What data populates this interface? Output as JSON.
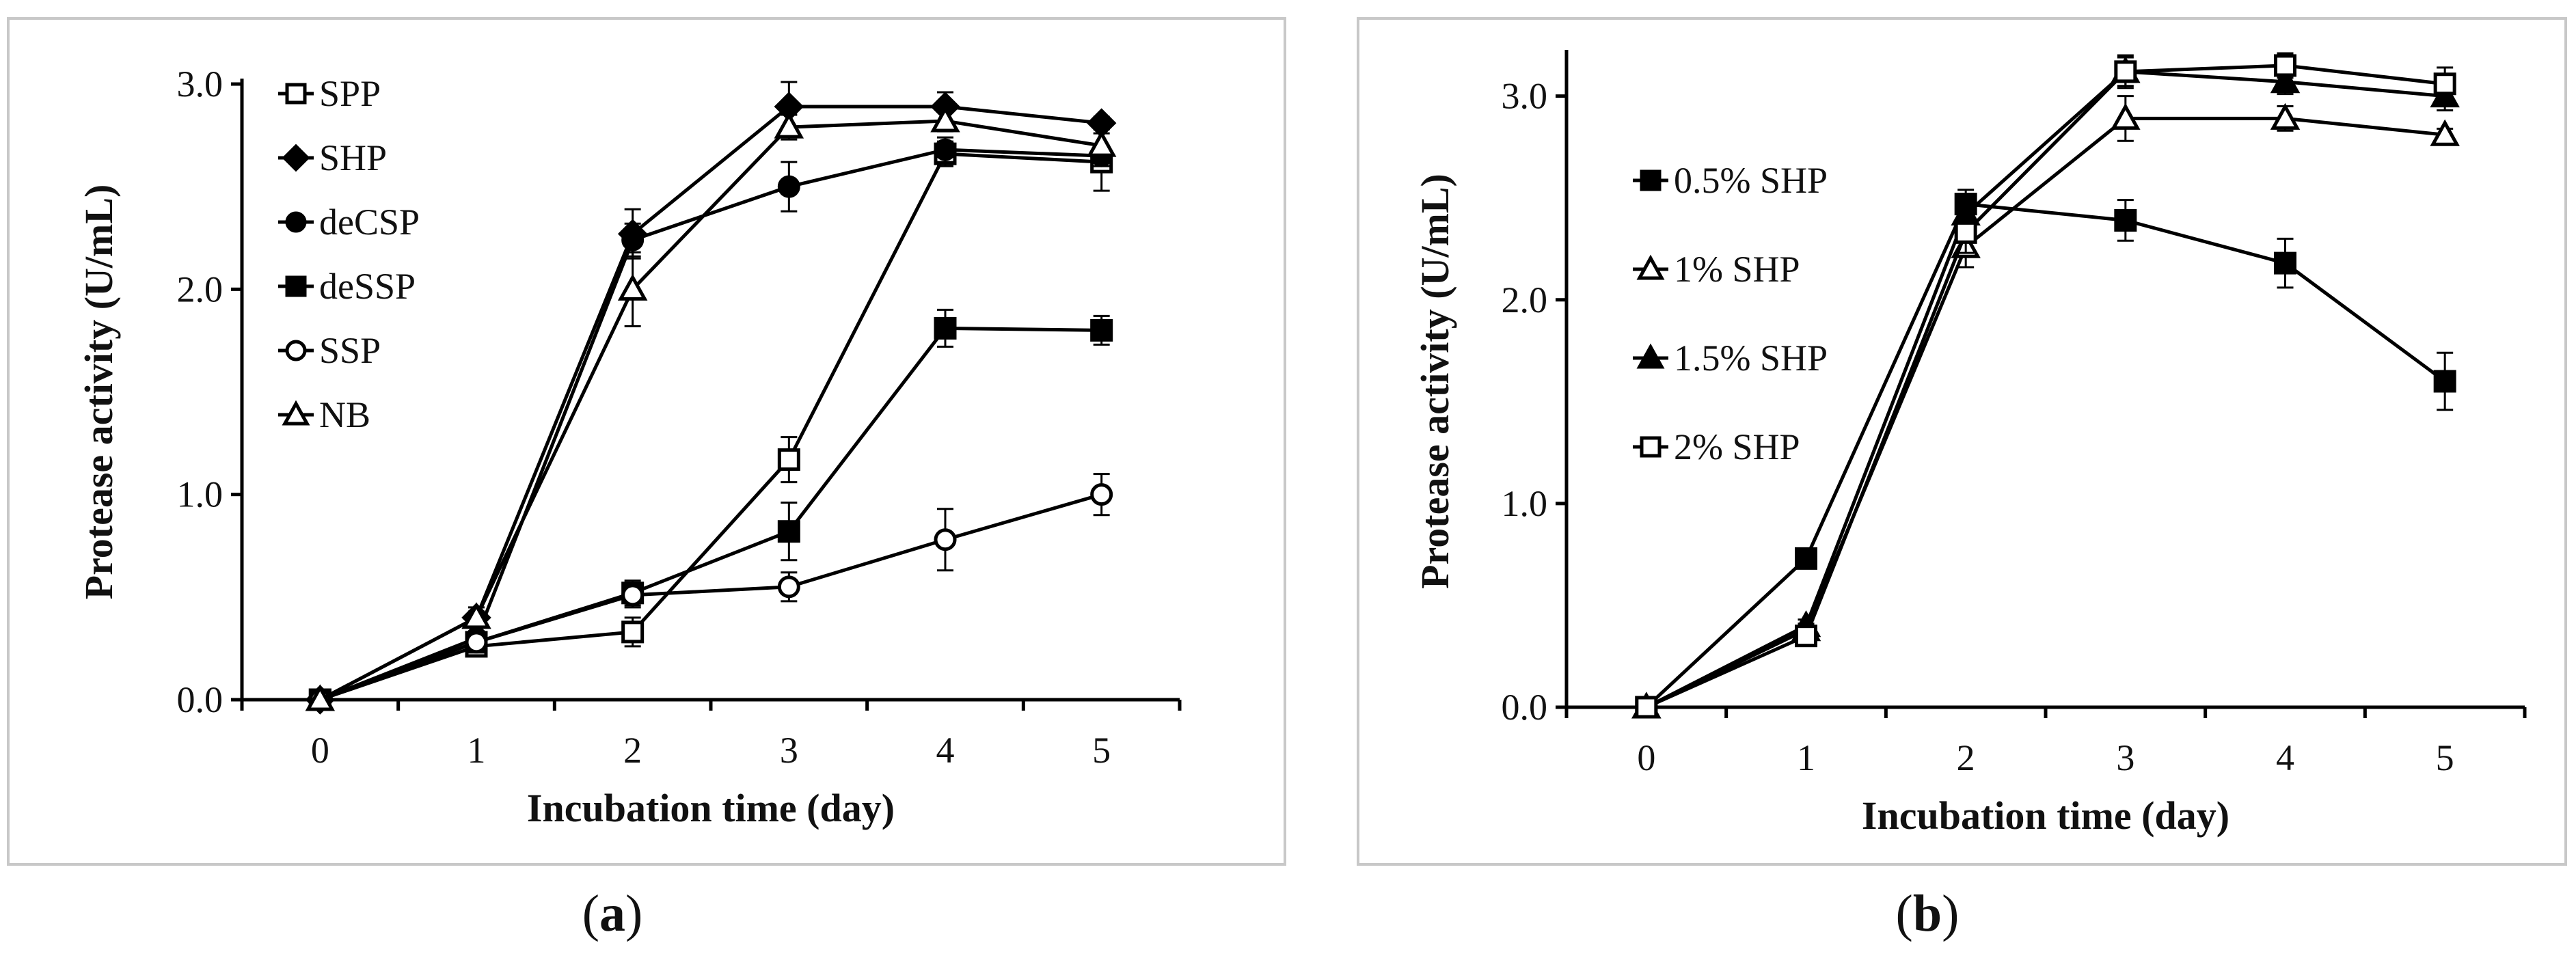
{
  "chart_data": [
    {
      "type": "line",
      "panel": "a",
      "title": "",
      "xlabel": "Incubation time (day)",
      "ylabel": "Protease activity (U/mL)",
      "x": [
        0,
        1,
        2,
        3,
        4,
        5
      ],
      "x_tick_labels": [
        "0",
        "1",
        "2",
        "3",
        "4",
        "5"
      ],
      "xlim": [
        -0.5,
        5.5
      ],
      "ylim": [
        0,
        3.0
      ],
      "y_tick_labels": [
        "0.0",
        "1.0",
        "2.0",
        "3.0"
      ],
      "y_ticks": [
        0,
        1,
        2,
        3
      ],
      "grid": false,
      "legend_position": "top-left",
      "series": [
        {
          "name": "SPP",
          "marker": "square-open",
          "values": [
            0,
            0.26,
            0.33,
            1.17,
            2.66,
            2.62
          ],
          "errors": [
            0,
            0.03,
            0.07,
            0.11,
            0.06,
            0.14
          ]
        },
        {
          "name": "SHP",
          "marker": "diamond-filled",
          "values": [
            0,
            0.4,
            2.27,
            2.89,
            2.89,
            2.81
          ],
          "errors": [
            0,
            0.03,
            0.12,
            0.12,
            0.07,
            0.03
          ]
        },
        {
          "name": "deCSP",
          "marker": "circle-filled",
          "values": [
            0,
            0.3,
            2.24,
            2.5,
            2.68,
            2.65
          ],
          "errors": [
            0,
            0.03,
            0.08,
            0.12,
            0.06,
            0.05
          ]
        },
        {
          "name": "deSSP",
          "marker": "square-filled",
          "values": [
            0,
            0.28,
            0.52,
            0.82,
            1.81,
            1.8
          ],
          "errors": [
            0,
            0.03,
            0.06,
            0.14,
            0.09,
            0.07
          ]
        },
        {
          "name": "SSP",
          "marker": "circle-open",
          "values": [
            0,
            0.28,
            0.51,
            0.55,
            0.78,
            1.0
          ],
          "errors": [
            0,
            0.03,
            0.06,
            0.07,
            0.15,
            0.1
          ]
        },
        {
          "name": "NB",
          "marker": "triangle-open",
          "values": [
            0,
            0.4,
            2.0,
            2.79,
            2.82,
            2.7
          ],
          "errors": [
            0,
            0.05,
            0.18,
            0.06,
            0.05,
            0.08
          ]
        }
      ]
    },
    {
      "type": "line",
      "panel": "b",
      "title": "",
      "xlabel": "Incubation time (day)",
      "ylabel": "Protease activity (U/mL)",
      "x": [
        0,
        1,
        2,
        3,
        4,
        5
      ],
      "x_tick_labels": [
        "0",
        "1",
        "2",
        "3",
        "4",
        "5"
      ],
      "xlim": [
        -0.5,
        5.5
      ],
      "ylim": [
        0,
        3.2
      ],
      "y_tick_labels": [
        "0.0",
        "1.0",
        "2.0",
        "3.0"
      ],
      "y_ticks": [
        0,
        1,
        2,
        3
      ],
      "grid": false,
      "legend_position": "left",
      "series": [
        {
          "name": "0.5% SHP",
          "marker": "square-filled",
          "values": [
            0,
            0.73,
            2.47,
            2.39,
            2.18,
            1.6
          ],
          "errors": [
            0,
            0.03,
            0.07,
            0.1,
            0.12,
            0.14
          ]
        },
        {
          "name": "1% SHP",
          "marker": "triangle-open",
          "values": [
            0,
            0.38,
            2.26,
            2.89,
            2.89,
            2.81
          ],
          "errors": [
            0,
            0.03,
            0.1,
            0.11,
            0.06,
            0.03
          ]
        },
        {
          "name": "1.5% SHP",
          "marker": "triangle-filled",
          "values": [
            0,
            0.4,
            2.42,
            3.12,
            3.07,
            3.0
          ],
          "errors": [
            0,
            0.03,
            0.1,
            0.07,
            0.06,
            0.07
          ]
        },
        {
          "name": "2% SHP",
          "marker": "square-open",
          "values": [
            0,
            0.35,
            2.33,
            3.12,
            3.15,
            3.06
          ],
          "errors": [
            0,
            0.03,
            0.1,
            0.08,
            0.06,
            0.08
          ]
        }
      ]
    }
  ],
  "captions": {
    "a": "a",
    "b": "b"
  }
}
